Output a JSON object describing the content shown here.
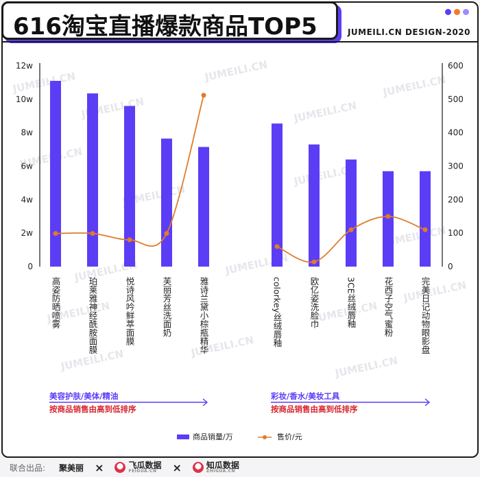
{
  "header": {
    "title": "616淘宝直播爆款商品TOP5",
    "tagline": "JUMEILI.CN DESIGN-2020",
    "dot_colors": [
      "#5b3df5",
      "#f07a2a",
      "#9b8cff"
    ]
  },
  "colors": {
    "bar": "#5b3df5",
    "line": "#e07b2a",
    "category_label": "#5b3df5",
    "sort_note": "#d6262f",
    "axis": "#1a1a1a"
  },
  "chart_data": {
    "type": "bar",
    "categories": [
      "高姿防晒喷雾",
      "珀莱雅神经酰胺面膜",
      "悦诗风吟鲜萃面膜",
      "芙丽芳丝洗面奶",
      "雅诗兰黛小棕瓶精华",
      "colorkey丝绒唇釉",
      "欧亿姿洗脸巾",
      "3CE丝绒唇釉",
      "花西子空气蜜粉",
      "完美日记动物眼影盘"
    ],
    "series": [
      {
        "name": "商品销量/万",
        "type": "bar",
        "axis": "left",
        "values": [
          111000,
          103500,
          96000,
          76500,
          71500,
          85500,
          73000,
          64000,
          57000,
          57000
        ]
      },
      {
        "name": "售价/元",
        "type": "line",
        "axis": "right",
        "values": [
          99,
          99,
          80,
          99,
          512,
          60,
          14,
          110,
          150,
          110
        ]
      }
    ],
    "y_left": {
      "range": [
        0,
        120000
      ],
      "ticks": [
        "0",
        "2w",
        "4w",
        "6w",
        "8w",
        "10w",
        "12w"
      ]
    },
    "y_right": {
      "range": [
        0,
        600
      ],
      "ticks": [
        "0",
        "100",
        "200",
        "300",
        "400",
        "500",
        "600"
      ]
    },
    "groups": [
      {
        "name": "美容护肤/美体/精油",
        "note": "按商品销售由高到低排序"
      },
      {
        "name": "彩妆/香水/美妆工具",
        "note": "按商品销售由高到低排序"
      }
    ],
    "legend": {
      "placement": "bottom"
    },
    "grid": false
  },
  "watermark": "JUMEILI.CN",
  "footer": {
    "label": "联合出品:",
    "brand1": "聚美丽",
    "brand2": "飞瓜数据",
    "brand2_sub": "FEIGUA.CN",
    "brand3": "知瓜数据",
    "brand3_sub": "ZHIGUA.CN",
    "separator": "×"
  }
}
